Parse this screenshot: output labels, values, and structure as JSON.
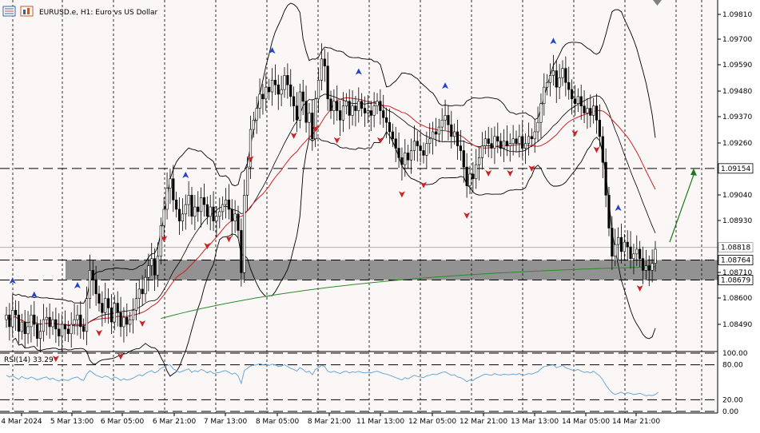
{
  "header": {
    "symbol": "EURUSD.e",
    "timeframe": "H1",
    "description": "Euro vs US Dollar"
  },
  "colors": {
    "background": "#fcf7f7",
    "grid": "#000000",
    "bull_candle": "#1f1f8c",
    "bear_candle": "#a01818",
    "bands": "#000000",
    "ma_fast": "#cc2222",
    "ma_slow": "#2a8a2a",
    "zone": "#808080",
    "rsi_line": "#6aa8d6",
    "arrow_up": "#2244cc",
    "arrow_down": "#cc2222",
    "projection": "#1a7a1a"
  },
  "chart_data": [
    {
      "type": "candlestick",
      "symbol": "EURUSD.e",
      "timeframe": "H1",
      "title": "EURUSD.e, H1: Euro vs US Dollar",
      "x_tick_labels": [
        "4 Mar 2024",
        "5 Mar 13:00",
        "6 Mar 05:00",
        "6 Mar 21:00",
        "7 Mar 13:00",
        "8 Mar 05:00",
        "8 Mar 21:00",
        "11 Mar 13:00",
        "12 Mar 05:00",
        "12 Mar 21:00",
        "13 Mar 13:00",
        "14 Mar 05:00",
        "14 Mar 21:00"
      ],
      "y_tick_labels": [
        "1.09810",
        "1.09700",
        "1.09590",
        "1.09480",
        "1.09370",
        "1.09260",
        "1.09040",
        "1.08930",
        "1.08710",
        "1.08600",
        "1.08490"
      ],
      "ylim": [
        1.08425,
        1.09855
      ],
      "price_labels": [
        {
          "value": 1.09154,
          "text": "1.09154",
          "style": "highlight"
        },
        {
          "value": 1.08818,
          "text": "1.08818",
          "style": "outline"
        },
        {
          "value": 1.08764,
          "text": "1.08764",
          "style": "highlight"
        },
        {
          "value": 1.08679,
          "text": "1.08679",
          "style": "highlight"
        }
      ],
      "horizontal_levels": [
        1.09154,
        1.08764,
        1.08679
      ],
      "zone": [
        1.08679,
        1.08764
      ],
      "close_series": [
        1.0853,
        1.0848,
        1.0855,
        1.0853,
        1.0846,
        1.085,
        1.0845,
        1.0848,
        1.0853,
        1.0849,
        1.0843,
        1.0846,
        1.0851,
        1.0852,
        1.0848,
        1.0851,
        1.0847,
        1.0844,
        1.0849,
        1.0847,
        1.0845,
        1.0849,
        1.0851,
        1.0853,
        1.0848,
        1.0846,
        1.086,
        1.0872,
        1.0868,
        1.0862,
        1.0858,
        1.0854,
        1.086,
        1.0856,
        1.085,
        1.0858,
        1.0854,
        1.0848,
        1.0852,
        1.0849,
        1.0851,
        1.0855,
        1.086,
        1.0864,
        1.0862,
        1.0869,
        1.0874,
        1.0877,
        1.087,
        1.0878,
        1.0891,
        1.0898,
        1.0907,
        1.0911,
        1.0902,
        1.0898,
        1.0893,
        1.0896,
        1.09,
        1.0904,
        1.0895,
        1.0899,
        1.0897,
        1.0903,
        1.09,
        1.0895,
        1.0899,
        1.0893,
        1.0895,
        1.0897,
        1.09,
        1.0902,
        1.0898,
        1.0893,
        1.0896,
        1.0889,
        1.0871,
        1.0904,
        1.0916,
        1.0932,
        1.0936,
        1.0941,
        1.0947,
        1.0945,
        1.095,
        1.0948,
        1.0953,
        1.0951,
        1.0947,
        1.0949,
        1.0955,
        1.0951,
        1.0946,
        1.0942,
        1.0936,
        1.0948,
        1.0944,
        1.0935,
        1.0939,
        1.0928,
        1.0945,
        1.0953,
        1.0962,
        1.0959,
        1.0945,
        1.094,
        1.0944,
        1.094,
        1.0936,
        1.0942,
        1.0944,
        1.0938,
        1.0942,
        1.094,
        1.0944,
        1.0941,
        1.0939,
        1.094,
        1.0938,
        1.0942,
        1.0944,
        1.094,
        1.0937,
        1.0935,
        1.0931,
        1.0928,
        1.0924,
        1.092,
        1.0917,
        1.0922,
        1.0919,
        1.0923,
        1.0927,
        1.0925,
        1.0923,
        1.0921,
        1.0926,
        1.0928,
        1.0931,
        1.093,
        1.0933,
        1.0936,
        1.0938,
        1.0934,
        1.0929,
        1.0931,
        1.0925,
        1.0923,
        1.0916,
        1.0908,
        1.0913,
        1.0911,
        1.0917,
        1.092,
        1.0925,
        1.0928,
        1.0926,
        1.0924,
        1.0929,
        1.0927,
        1.0924,
        1.0927,
        1.0925,
        1.0926,
        1.0928,
        1.0926,
        1.0929,
        1.0924,
        1.0926,
        1.0929,
        1.0928,
        1.0931,
        1.0935,
        1.0943,
        1.095,
        1.0952,
        1.0955,
        1.0957,
        1.095,
        1.0954,
        1.0958,
        1.0952,
        1.0949,
        1.0945,
        1.0943,
        1.0946,
        1.0942,
        1.0939,
        1.0941,
        1.0938,
        1.0942,
        1.0936,
        1.0929,
        1.0918,
        1.0904,
        1.089,
        1.0878,
        1.0883,
        1.0886,
        1.088,
        1.0884,
        1.0882,
        1.0877,
        1.0879,
        1.0881,
        1.0877,
        1.0872,
        1.0874,
        1.0872,
        1.0875,
        1.0881
      ],
      "indicators": [
        "Bollinger Bands",
        "Moving Average (fast)",
        "Moving Average (slow)"
      ]
    },
    {
      "type": "line",
      "title": "RSI(14) 33.29",
      "indicator": "RSI",
      "period": 14,
      "current": 33.29,
      "y_tick_labels": [
        "100.00",
        "80.00",
        "20.00",
        "0.00"
      ],
      "levels": [
        80,
        20
      ],
      "ylim": [
        0,
        100
      ],
      "values": [
        62,
        59,
        61,
        58,
        55,
        60,
        57,
        56,
        59,
        57,
        54,
        56,
        58,
        59,
        55,
        57,
        54,
        52,
        55,
        54,
        53,
        56,
        58,
        59,
        55,
        53,
        64,
        70,
        66,
        62,
        60,
        58,
        61,
        59,
        55,
        59,
        57,
        53,
        56,
        54,
        55,
        57,
        60,
        63,
        61,
        65,
        68,
        70,
        66,
        69,
        74,
        76,
        79,
        80,
        73,
        70,
        67,
        69,
        71,
        73,
        67,
        70,
        68,
        72,
        70,
        66,
        69,
        65,
        66,
        67,
        69,
        70,
        67,
        64,
        66,
        61,
        48,
        70,
        74,
        78,
        79,
        80,
        82,
        80,
        81,
        79,
        81,
        80,
        77,
        78,
        80,
        77,
        74,
        72,
        69,
        75,
        72,
        67,
        69,
        63,
        72,
        75,
        79,
        77,
        69,
        67,
        69,
        67,
        65,
        68,
        69,
        66,
        68,
        67,
        69,
        67,
        66,
        67,
        66,
        68,
        69,
        67,
        65,
        64,
        62,
        60,
        58,
        56,
        54,
        58,
        56,
        59,
        62,
        60,
        59,
        58,
        61,
        62,
        64,
        63,
        65,
        67,
        68,
        65,
        62,
        63,
        59,
        58,
        55,
        51,
        54,
        53,
        57,
        59,
        62,
        64,
        63,
        62,
        65,
        63,
        62,
        64,
        63,
        63,
        64,
        63,
        65,
        62,
        63,
        65,
        64,
        66,
        68,
        73,
        77,
        78,
        79,
        80,
        75,
        77,
        79,
        75,
        73,
        71,
        70,
        72,
        69,
        67,
        68,
        66,
        69,
        65,
        61,
        54,
        45,
        38,
        32,
        29,
        31,
        33,
        30,
        32,
        31,
        29,
        30,
        31,
        29,
        27,
        28,
        27,
        29,
        33
      ]
    }
  ]
}
